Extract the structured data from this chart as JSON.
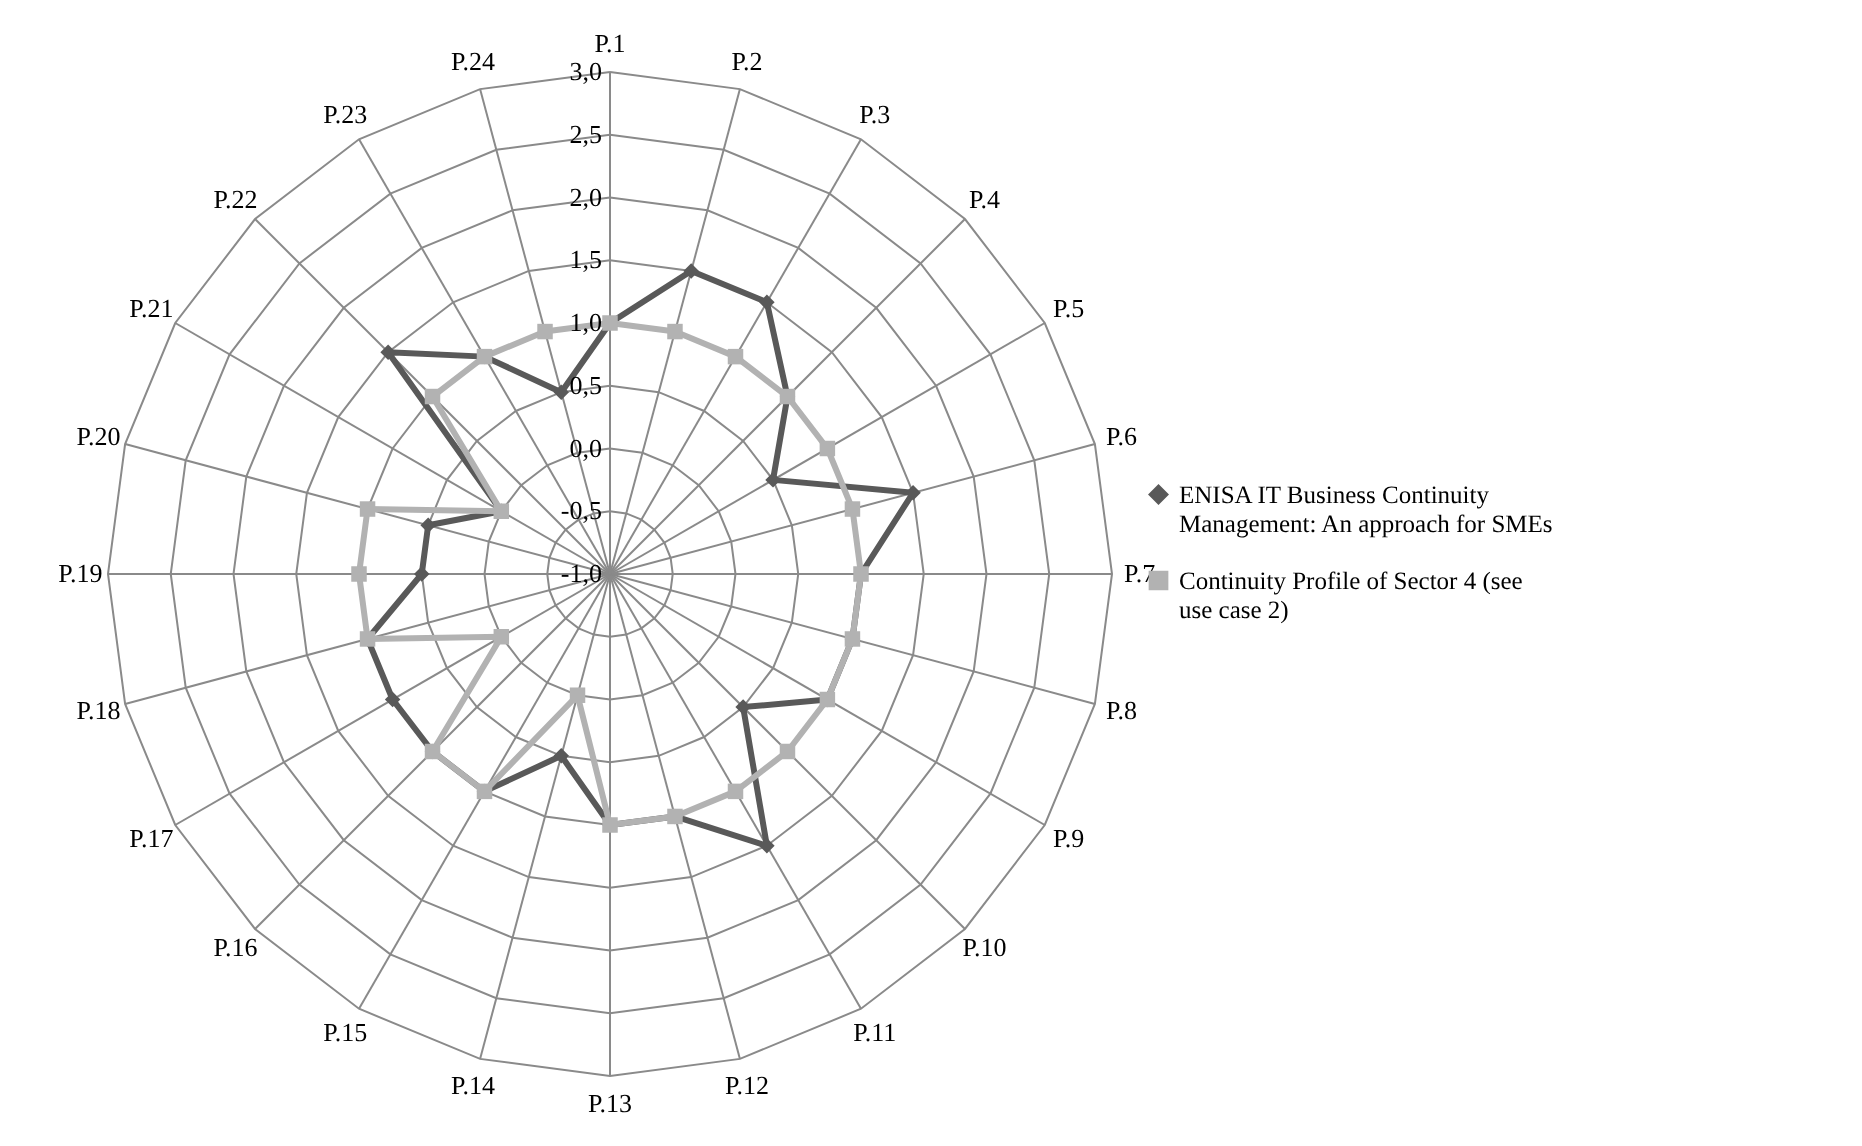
{
  "chart_data": {
    "type": "radar",
    "categories": [
      "P.1",
      "P.2",
      "P.3",
      "P.4",
      "P.5",
      "P.6",
      "P.7",
      "P.8",
      "P.9",
      "P.10",
      "P.11",
      "P.12",
      "P.13",
      "P.14",
      "P.15",
      "P.16",
      "P.17",
      "P.18",
      "P.19",
      "P.20",
      "P.21",
      "P.22",
      "P.23",
      "P.24"
    ],
    "series": [
      {
        "name": "ENISA IT Business Continuity Management: An approach for SMEs",
        "color": "#595959",
        "marker": "diamond",
        "values": [
          1,
          1.5,
          1.5,
          1,
          0.5,
          1.5,
          1,
          1,
          1,
          0.5,
          1.5,
          1,
          1,
          0.5,
          1,
          1,
          1,
          1,
          0.5,
          0.5,
          0,
          1.5,
          1,
          0.5
        ]
      },
      {
        "name": "Continuity Profile of Sector 4 (see use case 2)",
        "color": "#b2b2b2",
        "marker": "square",
        "values": [
          1,
          1,
          1,
          1,
          1,
          1,
          1,
          1,
          1,
          1,
          1,
          1,
          1,
          0,
          1,
          1,
          0,
          1,
          1,
          1,
          0,
          1,
          1,
          1
        ]
      }
    ],
    "ylim": [
      -1,
      3
    ],
    "yticks": [
      {
        "value": -1,
        "label": "-1,0"
      },
      {
        "value": -0.5,
        "label": "-0,5"
      },
      {
        "value": 0,
        "label": "0,0"
      },
      {
        "value": 0.5,
        "label": "0,5"
      },
      {
        "value": 1,
        "label": "1,0"
      },
      {
        "value": 1.5,
        "label": "1,5"
      },
      {
        "value": 2,
        "label": "2,0"
      },
      {
        "value": 2.5,
        "label": "2,5"
      },
      {
        "value": 3,
        "label": "3,0"
      }
    ],
    "grid": true,
    "legend": "right",
    "line_style": "solid"
  }
}
